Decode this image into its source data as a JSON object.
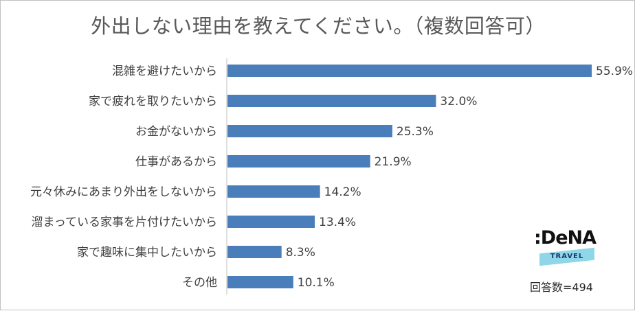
{
  "chart_data": {
    "type": "bar",
    "orientation": "horizontal",
    "title": "外出しない理由を教えてください。（複数回答可）",
    "categories": [
      "混雑を避けたいから",
      "家で疲れを取りたいから",
      "お金がないから",
      "仕事があるから",
      "元々休みにあまり外出をしないから",
      "溜まっている家事を片付けたいから",
      "家で趣味に集中したいから",
      "その他"
    ],
    "values": [
      55.9,
      32.0,
      25.3,
      21.9,
      14.2,
      13.4,
      8.3,
      10.1
    ],
    "value_labels": [
      "55.9%",
      "32.0%",
      "25.3%",
      "21.9%",
      "14.2%",
      "13.4%",
      "8.3%",
      "10.1%"
    ],
    "xlim": [
      0,
      56
    ],
    "grid": false,
    "bar_color": "#4a7ebb"
  },
  "logo": {
    "brand": ":DeNA",
    "band": "TRAVEL"
  },
  "respondents": "回答数=494"
}
